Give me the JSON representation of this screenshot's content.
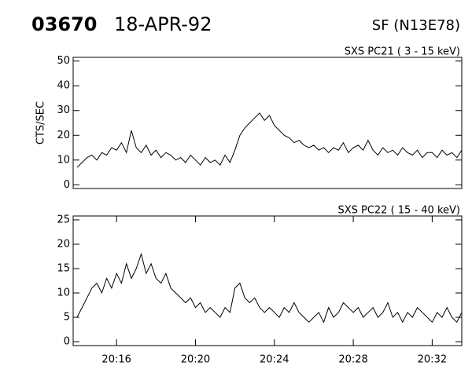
{
  "header": {
    "event": "03670",
    "date": "18-APR-92",
    "flare": "SF (N13E78)"
  },
  "chart_data": [
    {
      "type": "line",
      "title": "SXS PC21  (  3 - 15 keV)",
      "ylabel": "CTS/SEC",
      "color": "#000000",
      "x": [
        1214.0,
        1214.25,
        1214.5,
        1214.75,
        1215.0,
        1215.25,
        1215.5,
        1215.75,
        1216.0,
        1216.25,
        1216.5,
        1216.75,
        1217.0,
        1217.25,
        1217.5,
        1217.75,
        1218.0,
        1218.25,
        1218.5,
        1218.75,
        1219.0,
        1219.25,
        1219.5,
        1219.75,
        1220.0,
        1220.25,
        1220.5,
        1220.75,
        1221.0,
        1221.25,
        1221.5,
        1221.75,
        1222.0,
        1222.25,
        1222.5,
        1222.75,
        1223.0,
        1223.25,
        1223.5,
        1223.75,
        1224.0,
        1224.25,
        1224.5,
        1224.75,
        1225.0,
        1225.25,
        1225.5,
        1225.75,
        1226.0,
        1226.25,
        1226.5,
        1226.75,
        1227.0,
        1227.25,
        1227.5,
        1227.75,
        1228.0,
        1228.25,
        1228.5,
        1228.75,
        1229.0,
        1229.25,
        1229.5,
        1229.75,
        1230.0,
        1230.25,
        1230.5,
        1230.75,
        1231.0,
        1231.25,
        1231.5,
        1231.75,
        1232.0,
        1232.25,
        1232.5,
        1232.75,
        1233.0,
        1233.25,
        1233.5
      ],
      "values": [
        7,
        9,
        11,
        12,
        10,
        13,
        12,
        15,
        14,
        17,
        13,
        22,
        15,
        13,
        16,
        12,
        14,
        11,
        13,
        12,
        10,
        11,
        9,
        12,
        10,
        8,
        11,
        9,
        10,
        8,
        12,
        9,
        14,
        20,
        23,
        25,
        27,
        29,
        26,
        28,
        24,
        22,
        20,
        19,
        17,
        18,
        16,
        15,
        16,
        14,
        15,
        13,
        15,
        14,
        17,
        13,
        15,
        16,
        14,
        18,
        14,
        12,
        15,
        13,
        14,
        12,
        15,
        13,
        12,
        14,
        11,
        13,
        13,
        11,
        14,
        12,
        13,
        11,
        14
      ],
      "xlim": [
        1213.8,
        1233.5
      ],
      "ylim": [
        -1.5,
        51.5
      ],
      "yticks": [
        0,
        10,
        20,
        30,
        40,
        50
      ]
    },
    {
      "type": "line",
      "title": "SXS PC22  ( 15 - 40 keV)",
      "color": "#000000",
      "x": [
        1214.0,
        1214.25,
        1214.5,
        1214.75,
        1215.0,
        1215.25,
        1215.5,
        1215.75,
        1216.0,
        1216.25,
        1216.5,
        1216.75,
        1217.0,
        1217.25,
        1217.5,
        1217.75,
        1218.0,
        1218.25,
        1218.5,
        1218.75,
        1219.0,
        1219.25,
        1219.5,
        1219.75,
        1220.0,
        1220.25,
        1220.5,
        1220.75,
        1221.0,
        1221.25,
        1221.5,
        1221.75,
        1222.0,
        1222.25,
        1222.5,
        1222.75,
        1223.0,
        1223.25,
        1223.5,
        1223.75,
        1224.0,
        1224.25,
        1224.5,
        1224.75,
        1225.0,
        1225.25,
        1225.5,
        1225.75,
        1226.0,
        1226.25,
        1226.5,
        1226.75,
        1227.0,
        1227.25,
        1227.5,
        1227.75,
        1228.0,
        1228.25,
        1228.5,
        1228.75,
        1229.0,
        1229.25,
        1229.5,
        1229.75,
        1230.0,
        1230.25,
        1230.5,
        1230.75,
        1231.0,
        1231.25,
        1231.5,
        1231.75,
        1232.0,
        1232.25,
        1232.5,
        1232.75,
        1233.0,
        1233.25,
        1233.5
      ],
      "values": [
        5,
        7,
        9,
        11,
        12,
        10,
        13,
        11,
        14,
        12,
        16,
        13,
        15,
        18,
        14,
        16,
        13,
        12,
        14,
        11,
        10,
        9,
        8,
        9,
        7,
        8,
        6,
        7,
        6,
        5,
        7,
        6,
        11,
        12,
        9,
        8,
        9,
        7,
        6,
        7,
        6,
        5,
        7,
        6,
        8,
        6,
        5,
        4,
        5,
        6,
        4,
        7,
        5,
        6,
        8,
        7,
        6,
        7,
        5,
        6,
        7,
        5,
        6,
        8,
        5,
        6,
        4,
        6,
        5,
        7,
        6,
        5,
        4,
        6,
        5,
        7,
        5,
        4,
        6
      ],
      "xlim": [
        1213.8,
        1233.5
      ],
      "ylim": [
        -0.8,
        25.8
      ],
      "yticks": [
        0,
        5,
        10,
        15,
        20,
        25
      ],
      "xticks": [
        {
          "value": 1216,
          "label": "20:16"
        },
        {
          "value": 1220,
          "label": "20:20"
        },
        {
          "value": 1224,
          "label": "20:24"
        },
        {
          "value": 1228,
          "label": "20:28"
        },
        {
          "value": 1232,
          "label": "20:32"
        }
      ]
    }
  ]
}
